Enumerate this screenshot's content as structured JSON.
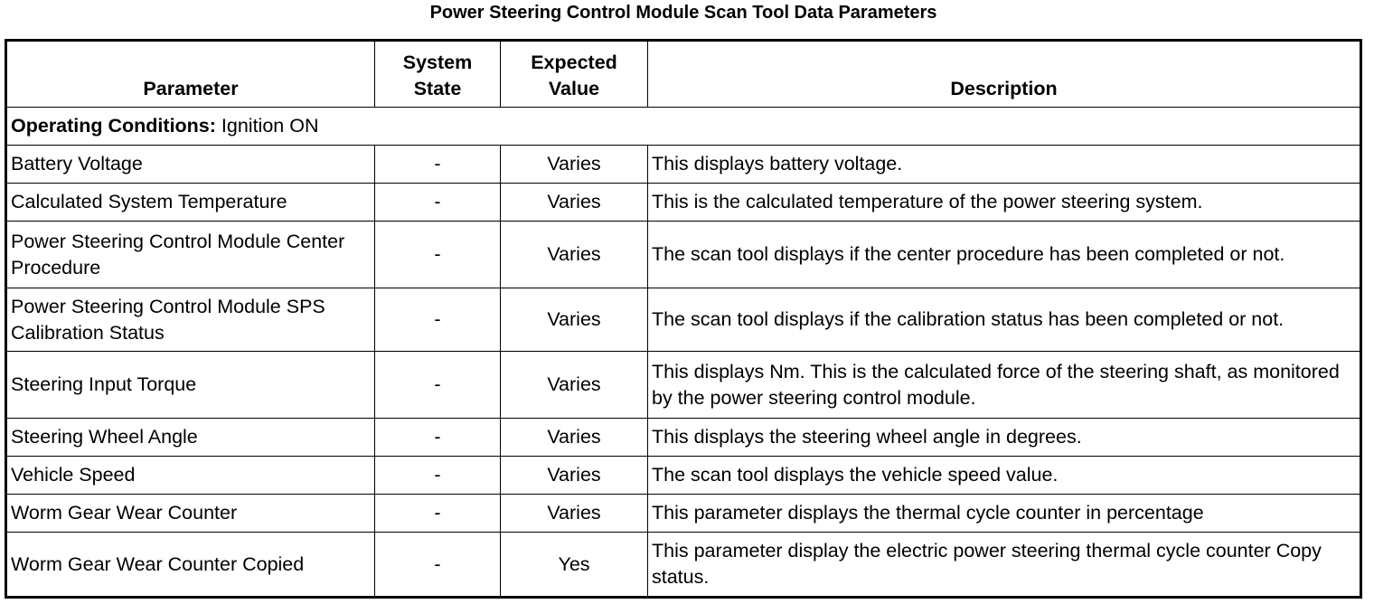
{
  "title": "Power Steering Control Module Scan Tool Data Parameters",
  "headers": {
    "parameter": "Parameter",
    "system_state": "System State",
    "expected_value": "Expected Value",
    "description": "Description"
  },
  "section": {
    "label": "Operating Conditions:",
    "value": "Ignition ON"
  },
  "rows": [
    {
      "parameter": "Battery Voltage",
      "system_state": "-",
      "expected_value": "Varies",
      "description": "This displays battery voltage."
    },
    {
      "parameter": "Calculated System Temperature",
      "system_state": "-",
      "expected_value": "Varies",
      "description": "This is the calculated temperature of the power steering system."
    },
    {
      "parameter": "Power Steering Control Module Center Procedure",
      "system_state": "-",
      "expected_value": "Varies",
      "description": "The scan tool displays if the center procedure has been completed or not."
    },
    {
      "parameter": "Power Steering Control Module SPS Calibration Status",
      "system_state": "-",
      "expected_value": "Varies",
      "description": "The scan tool displays if the calibration status has been completed or not."
    },
    {
      "parameter": "Steering Input Torque",
      "system_state": "-",
      "expected_value": "Varies",
      "description": "This displays Nm. This is the calculated force of the steering shaft, as monitored by the power steering control module."
    },
    {
      "parameter": "Steering Wheel Angle",
      "system_state": "-",
      "expected_value": "Varies",
      "description": "This displays the steering wheel angle in degrees."
    },
    {
      "parameter": "Vehicle Speed",
      "system_state": "-",
      "expected_value": "Varies",
      "description": "The scan tool displays the vehicle speed value."
    },
    {
      "parameter": "Worm Gear Wear Counter",
      "system_state": "-",
      "expected_value": "Varies",
      "description": "This parameter displays the thermal cycle counter in percentage"
    },
    {
      "parameter": "Worm Gear Wear Counter Copied",
      "system_state": "-",
      "expected_value": "Yes",
      "description": "This parameter display the electric power steering thermal cycle counter Copy status."
    }
  ]
}
